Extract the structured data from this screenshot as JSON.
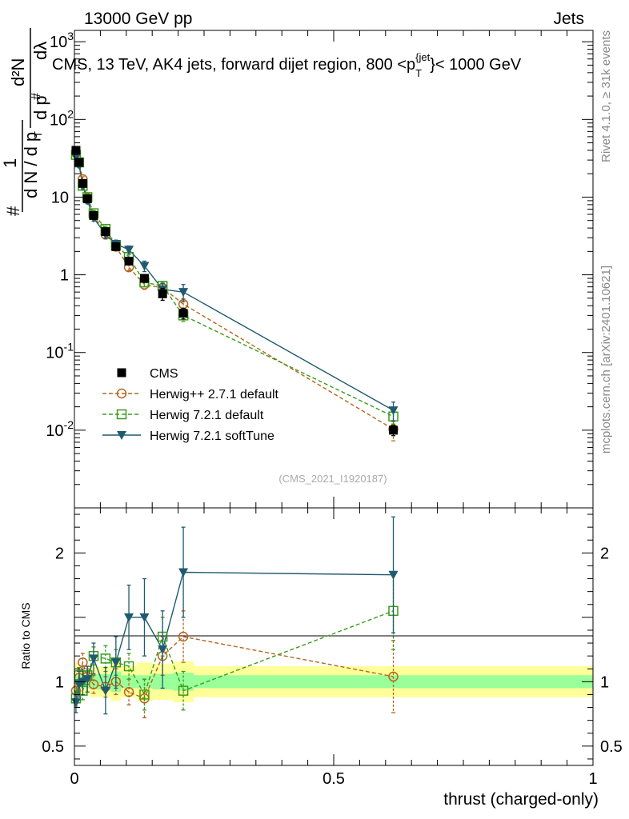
{
  "header": {
    "left": "13000 GeV pp",
    "right": "Jets"
  },
  "side_labels": {
    "rivet": "Rivet 4.1.0, ≥ 31k events",
    "site": "mcplots.cern.ch [arXiv:2401.10621]"
  },
  "chart_data": {
    "type": "scatter",
    "title": "CMS, 13 TeV, AK4 jets, forward dijet region, 800 <p_T^{jet}< 1000 GeV",
    "title_parts": {
      "pre": "CMS, 13 TeV, AK4 jets, forward dijet region, 800 <p",
      "sub": "T",
      "sup": "{jet",
      "post": "}< 1000 GeV"
    },
    "ylabel_main": "1/(dN/dpT) d²N/(dpT dλ)",
    "ylabel_parts": {
      "hash": "#",
      "one": "1",
      "dN": "d N / d p",
      "d2N": "d²N",
      "dpT": "d p",
      "dlam": "dλ",
      "T": "T"
    },
    "ylabel_ratio": "Ratio to CMS",
    "xlabel": "thrust (charged-only)",
    "watermark": "(CMS_2021_I1920187)",
    "xlim": [
      0,
      1
    ],
    "ylim_main": [
      0.001,
      1400
    ],
    "ylim_ratio": [
      0.35,
      2.35
    ],
    "x_ticks": [
      0,
      0.5,
      1
    ],
    "x_tick_labels": [
      "0",
      "0.5",
      "1"
    ],
    "y_ticks_main": [
      {
        "label": "10",
        "exp": "-2",
        "value": 0.01
      },
      {
        "label": "10",
        "exp": "-1",
        "value": 0.1
      },
      {
        "label": "1",
        "exp": "",
        "value": 1
      },
      {
        "label": "10",
        "exp": "",
        "value": 10
      },
      {
        "label": "10",
        "exp": "2",
        "value": 100
      },
      {
        "label": "10",
        "exp": "3",
        "value": 1000
      }
    ],
    "y_ticks_ratio": [
      {
        "label": "0.5",
        "value": 0.5
      },
      {
        "label": "1",
        "value": 1
      },
      {
        "label": "2",
        "value": 2
      }
    ],
    "legend": [
      "CMS",
      "Herwig++ 2.7.1 default",
      "Herwig 7.2.1 default",
      "Herwig 7.2.1 softTune"
    ],
    "x": [
      0.003,
      0.009,
      0.016,
      0.025,
      0.037,
      0.06,
      0.08,
      0.105,
      0.135,
      0.17,
      0.21,
      0.615
    ],
    "series": [
      {
        "name": "CMS",
        "color": "#000000",
        "marker": "square-filled",
        "values": [
          40,
          28,
          15,
          9.5,
          5.8,
          3.6,
          2.3,
          1.5,
          0.9,
          0.57,
          0.32,
          0.01
        ],
        "errors": [
          3,
          2,
          1.2,
          0.7,
          0.5,
          0.3,
          0.2,
          0.15,
          0.1,
          0.1,
          0.05,
          0.0015
        ]
      },
      {
        "name": "Herwig++ 2.7.1 default",
        "color": "#b5651d",
        "marker": "circle-open",
        "dashed": true,
        "values": [
          37,
          28,
          17,
          9.8,
          5.9,
          3.3,
          2.3,
          1.25,
          0.75,
          0.68,
          0.42,
          0.0103
        ],
        "errors": [
          3,
          2,
          1.3,
          0.8,
          0.5,
          0.3,
          0.2,
          0.12,
          0.1,
          0.08,
          0.07,
          0.003
        ],
        "ratio": [
          0.93,
          1.03,
          1.15,
          1.04,
          0.98,
          0.96,
          1.0,
          0.92,
          0.87,
          1.2,
          1.35,
          1.04
        ],
        "ratio_errors": [
          0.06,
          0.06,
          0.07,
          0.06,
          0.07,
          0.08,
          0.1,
          0.1,
          0.15,
          0.15,
          0.2,
          0.28
        ]
      },
      {
        "name": "Herwig 7.2.1 default",
        "color": "#3a9b1a",
        "marker": "square-open",
        "dashed": true,
        "values": [
          35,
          28,
          14,
          10,
          6.2,
          3.9,
          2.4,
          1.7,
          0.8,
          0.72,
          0.3,
          0.015
        ],
        "errors": [
          3,
          2,
          1.2,
          0.8,
          0.5,
          0.3,
          0.2,
          0.15,
          0.1,
          0.08,
          0.05,
          0.003
        ],
        "ratio": [
          0.87,
          1.05,
          0.93,
          1.05,
          1.2,
          1.18,
          1.15,
          1.12,
          0.9,
          1.35,
          0.93,
          1.55
        ],
        "ratio_errors": [
          0.06,
          0.06,
          0.07,
          0.07,
          0.07,
          0.1,
          0.1,
          0.1,
          0.12,
          0.15,
          0.15,
          0.3
        ]
      },
      {
        "name": "Herwig 7.2.1 softTune",
        "color": "#1f5a70",
        "marker": "triangle-down",
        "dashed": false,
        "values": [
          33,
          26,
          14,
          9,
          5.4,
          3.3,
          2.5,
          2.1,
          1.3,
          0.65,
          0.6,
          0.018
        ],
        "errors": [
          3,
          2,
          1.2,
          0.8,
          0.5,
          0.4,
          0.3,
          0.25,
          0.2,
          0.12,
          0.15,
          0.005
        ],
        "ratio": [
          0.84,
          0.98,
          1.0,
          1.02,
          1.18,
          0.93,
          1.15,
          1.5,
          1.5,
          1.25,
          1.85,
          1.83
        ],
        "ratio_errors": [
          0.08,
          0.1,
          0.1,
          0.1,
          0.12,
          0.18,
          0.2,
          0.25,
          0.3,
          0.3,
          0.35,
          0.45
        ]
      }
    ],
    "ratio_bands": {
      "edges": [
        0.0,
        0.006,
        0.012,
        0.02,
        0.03,
        0.045,
        0.07,
        0.09,
        0.12,
        0.15,
        0.19,
        0.23,
        1.0
      ],
      "inner": [
        0.05,
        0.05,
        0.05,
        0.05,
        0.06,
        0.06,
        0.08,
        0.05,
        0.05,
        0.06,
        0.07,
        0.05
      ],
      "outer": [
        0.15,
        0.12,
        0.1,
        0.1,
        0.12,
        0.12,
        0.15,
        0.12,
        0.15,
        0.14,
        0.16,
        0.12
      ]
    }
  }
}
